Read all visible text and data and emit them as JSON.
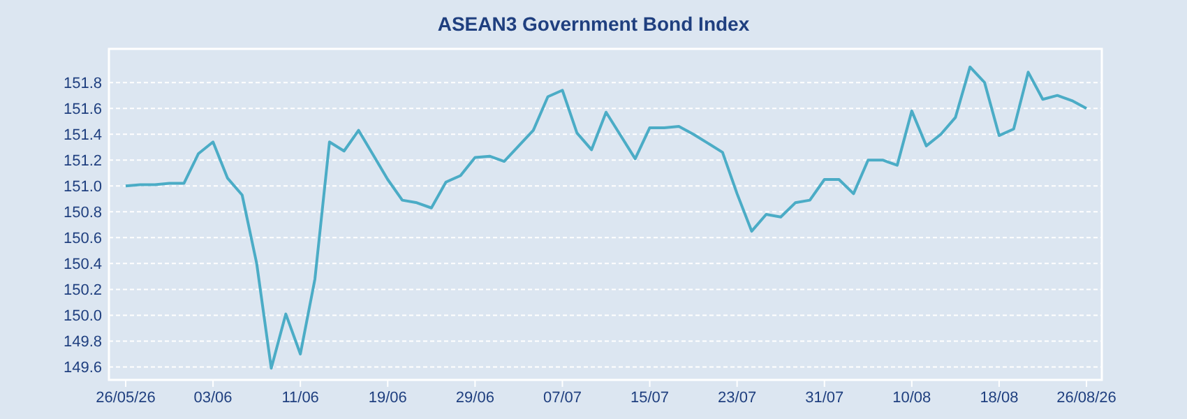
{
  "chart_data": {
    "type": "line",
    "title": "ASEAN3 Government Bond Index",
    "categories": [
      "26/05/26",
      null,
      null,
      null,
      null,
      null,
      "03/06",
      null,
      null,
      null,
      null,
      null,
      "11/06",
      null,
      null,
      null,
      null,
      null,
      "19/06",
      null,
      null,
      null,
      null,
      null,
      "29/06",
      null,
      null,
      null,
      null,
      null,
      "07/07",
      null,
      null,
      null,
      null,
      null,
      "15/07",
      null,
      null,
      null,
      null,
      null,
      "23/07",
      null,
      null,
      null,
      null,
      null,
      "31/07",
      null,
      null,
      null,
      null,
      null,
      "10/08",
      null,
      null,
      null,
      null,
      null,
      "18/08",
      null,
      null,
      null,
      null,
      null,
      "26/08/26"
    ],
    "series": [
      {
        "color": "#4bacc6",
        "values": [
          151.0,
          151.01,
          151.01,
          151.02,
          151.02,
          151.25,
          151.34,
          151.06,
          150.93,
          150.4,
          149.59,
          150.01,
          149.7,
          150.28,
          151.34,
          151.27,
          151.43,
          151.24,
          151.05,
          150.89,
          150.87,
          150.83,
          151.03,
          151.08,
          151.22,
          151.23,
          151.19,
          151.31,
          151.43,
          151.69,
          151.74,
          151.41,
          151.28,
          151.57,
          151.39,
          151.21,
          151.45,
          151.45,
          151.46,
          151.4,
          151.33,
          151.26,
          150.94,
          150.65,
          150.78,
          150.76,
          150.87,
          150.89,
          151.05,
          151.05,
          150.94,
          151.2,
          151.2,
          151.16,
          151.58,
          151.31,
          151.4,
          151.53,
          151.92,
          151.8,
          151.39,
          151.44,
          151.88,
          151.67,
          151.7,
          151.66,
          151.6
        ]
      }
    ],
    "ylim": [
      149.5,
      152.06
    ],
    "yticks": [
      {
        "value": 149.6,
        "label": "149.6"
      },
      {
        "value": 149.8,
        "label": "149.8"
      },
      {
        "value": 150,
        "label": "150.0"
      },
      {
        "value": 150.2,
        "label": "150.2"
      },
      {
        "value": 150.4,
        "label": "150.4"
      },
      {
        "value": 150.6,
        "label": "150.6"
      },
      {
        "value": 150.8,
        "label": "150.8"
      },
      {
        "value": 151,
        "label": "151.0"
      },
      {
        "value": 151.2,
        "label": "151.2"
      },
      {
        "value": 151.4,
        "label": "151.4"
      },
      {
        "value": 151.6,
        "label": "151.6"
      },
      {
        "value": 151.8,
        "label": "151.8"
      }
    ],
    "grid": "y",
    "marker": "none",
    "line_style": "solid"
  }
}
